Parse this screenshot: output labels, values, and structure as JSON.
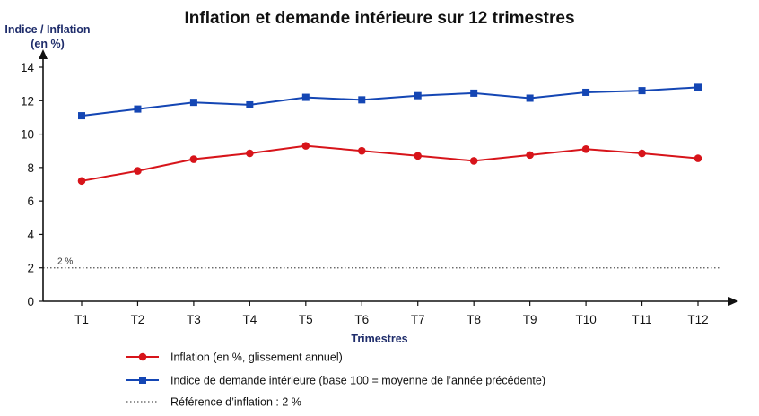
{
  "chart_data": {
    "type": "line",
    "title": "Inflation et demande intérieure sur 12 trimestres",
    "ylabel_line1": "Indice / Inflation",
    "ylabel_line2": "(en %)",
    "xlabel": "Trimestres",
    "categories": [
      "T1",
      "T2",
      "T3",
      "T4",
      "T5",
      "T6",
      "T7",
      "T8",
      "T9",
      "T10",
      "T11",
      "T12"
    ],
    "ylim": [
      0,
      14
    ],
    "yticks": [
      "0",
      "2",
      "4",
      "6",
      "8",
      "10",
      "12",
      "14"
    ],
    "grid": false,
    "series": [
      {
        "name": "Inflation (en %, glissement annuel)",
        "color": "#d7141a",
        "marker": "circle",
        "values": [
          7.2,
          7.8,
          8.5,
          8.85,
          9.3,
          9.0,
          8.7,
          8.4,
          8.75,
          9.1,
          8.85,
          8.55
        ]
      },
      {
        "name": "Indice de demande intérieure (base 100 = moyenne de l’année précédente)",
        "color": "#1446b4",
        "marker": "square",
        "values": [
          11.1,
          11.5,
          11.9,
          11.75,
          12.2,
          12.05,
          12.3,
          12.45,
          12.15,
          12.5,
          12.6,
          12.8
        ]
      }
    ],
    "reference": {
      "value": 2,
      "label": "2 %",
      "legend": "Référence d’inflation : 2 %",
      "color": "#555555",
      "style": "dotted"
    },
    "legend_position": "bottom-left"
  }
}
